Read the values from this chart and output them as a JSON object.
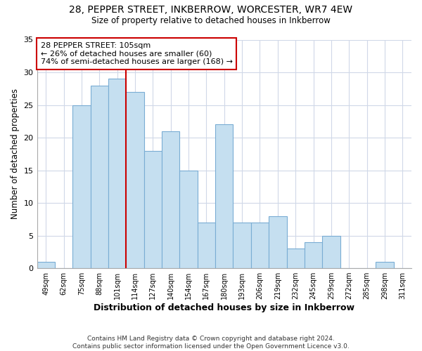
{
  "title": "28, PEPPER STREET, INKBERROW, WORCESTER, WR7 4EW",
  "subtitle": "Size of property relative to detached houses in Inkberrow",
  "xlabel": "Distribution of detached houses by size in Inkberrow",
  "ylabel": "Number of detached properties",
  "bar_labels": [
    "49sqm",
    "62sqm",
    "75sqm",
    "88sqm",
    "101sqm",
    "114sqm",
    "127sqm",
    "140sqm",
    "154sqm",
    "167sqm",
    "180sqm",
    "193sqm",
    "206sqm",
    "219sqm",
    "232sqm",
    "245sqm",
    "259sqm",
    "272sqm",
    "285sqm",
    "298sqm",
    "311sqm"
  ],
  "bar_values": [
    1,
    0,
    25,
    28,
    29,
    27,
    18,
    21,
    15,
    7,
    22,
    7,
    7,
    8,
    3,
    4,
    5,
    0,
    0,
    1,
    0
  ],
  "bar_color": "#c5dff0",
  "bar_edge_color": "#7aadd4",
  "highlight_bar_index": 4,
  "highlight_line_color": "#cc0000",
  "ylim": [
    0,
    35
  ],
  "yticks": [
    0,
    5,
    10,
    15,
    20,
    25,
    30,
    35
  ],
  "annotation_title": "28 PEPPER STREET: 105sqm",
  "annotation_line1": "← 26% of detached houses are smaller (60)",
  "annotation_line2": "74% of semi-detached houses are larger (168) →",
  "annotation_box_color": "#ffffff",
  "annotation_box_edge": "#cc0000",
  "footer_line1": "Contains HM Land Registry data © Crown copyright and database right 2024.",
  "footer_line2": "Contains public sector information licensed under the Open Government Licence v3.0.",
  "background_color": "#ffffff",
  "grid_color": "#d0d8e8"
}
